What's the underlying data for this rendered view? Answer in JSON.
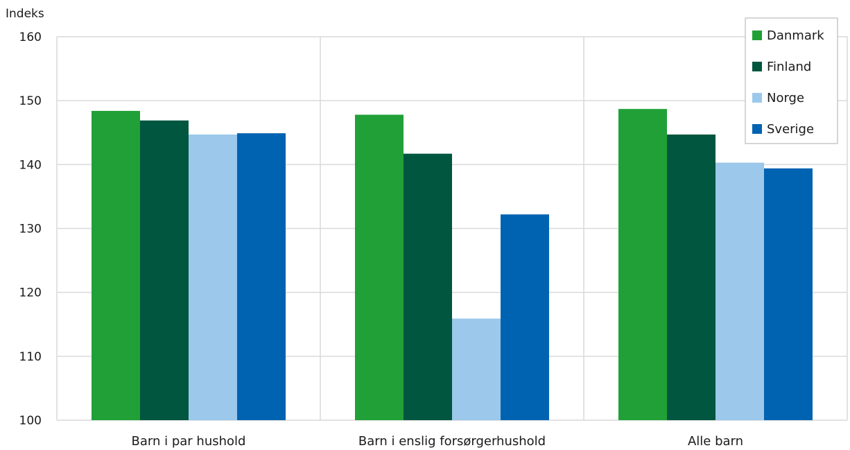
{
  "chart_data": {
    "type": "bar",
    "title": "",
    "ylabel": "Indeks",
    "xlabel": "",
    "categories": [
      "Barn i par hushold",
      "Barn i enslig forsørgerhushold",
      "Alle barn"
    ],
    "series": [
      {
        "name": "Danmark",
        "color": "#21a038",
        "values": [
          148.4,
          147.8,
          148.7
        ]
      },
      {
        "name": "Finland",
        "color": "#00563f",
        "values": [
          146.9,
          141.7,
          144.7
        ]
      },
      {
        "name": "Norge",
        "color": "#9bc8eb",
        "values": [
          144.7,
          115.9,
          140.3
        ]
      },
      {
        "name": "Sverige",
        "color": "#0063b1",
        "values": [
          144.9,
          132.2,
          139.4
        ]
      }
    ],
    "ylim": [
      100,
      160
    ],
    "yticks": [
      100,
      110,
      120,
      130,
      140,
      150,
      160
    ],
    "grid": true,
    "legend": "top-right"
  }
}
